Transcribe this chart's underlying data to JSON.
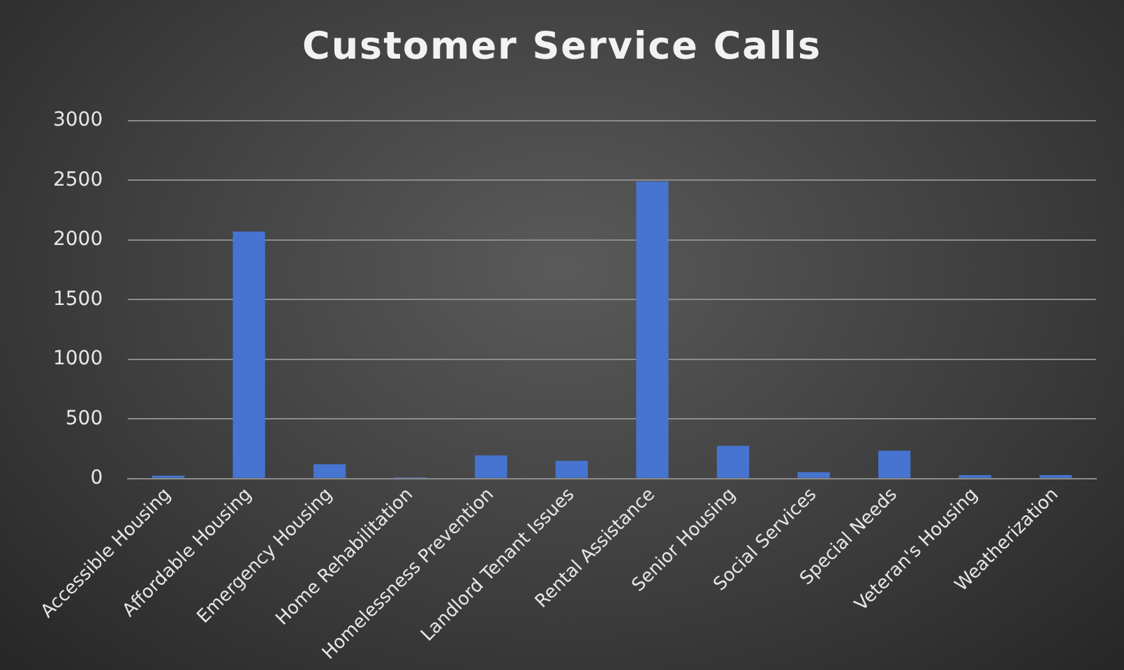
{
  "chart_data": {
    "type": "bar",
    "title": "Customer Service Calls",
    "categories": [
      "Accessible Housing",
      "Affordable Housing",
      "Emergency Housing",
      "Home Rehabilitation",
      "Homelessness Prevention",
      "Landlord Tenant Issues",
      "Rental Assistance",
      "Senior Housing",
      "Social Services",
      "Special Needs",
      "Veteran's Housing",
      "Weatherization"
    ],
    "values": [
      25,
      2070,
      120,
      10,
      195,
      150,
      2490,
      275,
      55,
      235,
      30,
      30
    ],
    "color": "#4674d0",
    "ylim": [
      0,
      3000
    ],
    "yticks": [
      0,
      500,
      1000,
      1500,
      2000,
      2500,
      3000
    ],
    "grid": "y",
    "legend": false
  }
}
